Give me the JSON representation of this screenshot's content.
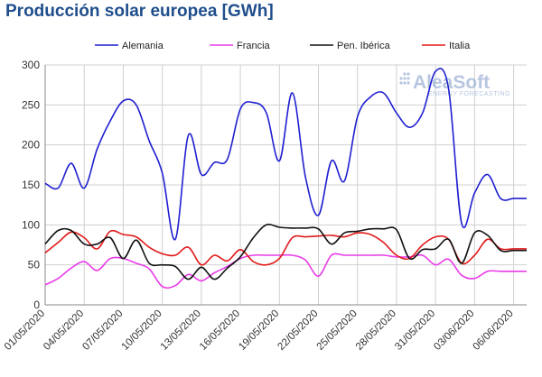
{
  "chart_data": {
    "type": "line",
    "title": "Producción solar europea [GWh]",
    "xlabel": "",
    "ylabel": "",
    "ylim": [
      0,
      300
    ],
    "yticks": [
      0,
      50,
      100,
      150,
      200,
      250,
      300
    ],
    "grid": true,
    "legend_position": "top",
    "x": [
      "01/05/2020",
      "02/05/2020",
      "03/05/2020",
      "04/05/2020",
      "05/05/2020",
      "06/05/2020",
      "07/05/2020",
      "08/05/2020",
      "09/05/2020",
      "10/05/2020",
      "11/05/2020",
      "12/05/2020",
      "13/05/2020",
      "14/05/2020",
      "15/05/2020",
      "16/05/2020",
      "17/05/2020",
      "18/05/2020",
      "19/05/2020",
      "20/05/2020",
      "21/05/2020",
      "22/05/2020",
      "23/05/2020",
      "24/05/2020",
      "25/05/2020",
      "26/05/2020",
      "27/05/2020",
      "28/05/2020",
      "29/05/2020",
      "30/05/2020",
      "31/05/2020",
      "01/06/2020",
      "02/06/2020",
      "03/06/2020",
      "04/06/2020",
      "05/06/2020",
      "06/06/2020",
      "07/06/2020"
    ],
    "xtick_labels": [
      "01/05/2020",
      "04/05/2020",
      "07/05/2020",
      "10/05/2020",
      "13/05/2020",
      "16/05/2020",
      "19/05/2020",
      "22/05/2020",
      "25/05/2020",
      "28/05/2020",
      "31/05/2020",
      "03/06/2020",
      "06/06/2020"
    ],
    "series": [
      {
        "name": "Alemania",
        "color": "#1f1fd1",
        "values": [
          152,
          146,
          177,
          146,
          195,
          230,
          255,
          250,
          205,
          165,
          82,
          212,
          163,
          178,
          182,
          245,
          253,
          240,
          180,
          265,
          160,
          112,
          180,
          155,
          235,
          260,
          265,
          240,
          222,
          240,
          292,
          270,
          102,
          140,
          163,
          133,
          133,
          133
        ]
      },
      {
        "name": "Francia",
        "color": "#e83be8",
        "values": [
          25,
          33,
          46,
          54,
          43,
          58,
          58,
          52,
          45,
          23,
          24,
          38,
          30,
          40,
          48,
          58,
          62,
          62,
          62,
          62,
          56,
          36,
          62,
          62,
          62,
          62,
          62,
          60,
          60,
          62,
          50,
          57,
          37,
          33,
          42,
          42,
          42,
          42
        ]
      },
      {
        "name": "Pen. Ibérica",
        "color": "#111111",
        "values": [
          76,
          93,
          93,
          76,
          76,
          84,
          58,
          81,
          52,
          50,
          48,
          32,
          47,
          32,
          46,
          60,
          84,
          100,
          97,
          96,
          96,
          95,
          76,
          90,
          92,
          95,
          95,
          94,
          58,
          69,
          70,
          82,
          52,
          90,
          87,
          68,
          68,
          68
        ]
      },
      {
        "name": "Italia",
        "color": "#e11a1a",
        "values": [
          65,
          78,
          91,
          84,
          70,
          92,
          88,
          85,
          72,
          64,
          62,
          72,
          50,
          62,
          55,
          69,
          54,
          50,
          58,
          84,
          85,
          86,
          87,
          85,
          90,
          88,
          78,
          62,
          58,
          75,
          85,
          82,
          52,
          62,
          82,
          70,
          70,
          70
        ]
      }
    ]
  },
  "watermark": {
    "name": "AleaSoft",
    "tagline": "ENERGY FORECASTING"
  }
}
